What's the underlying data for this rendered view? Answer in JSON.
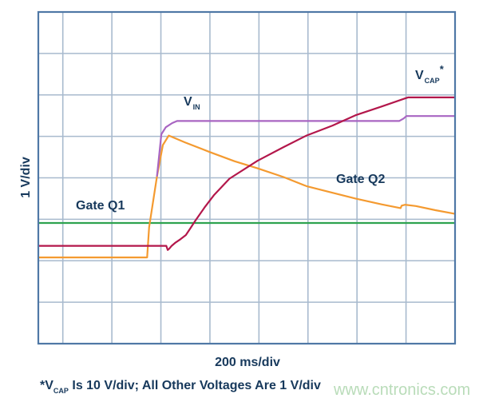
{
  "chart_data": {
    "type": "line",
    "xlabel": "200 ms/div",
    "ylabel": "1 V/div",
    "footnote": {
      "prefix": "*V",
      "sub": "CAP",
      "rest": " Is 10 V/div; All Other Voltages Are 1 V/div"
    },
    "watermark": "www.cntronics.com",
    "x_unit": "ms",
    "y_unit": "div",
    "xlim": [
      0,
      1700
    ],
    "ylim": [
      0,
      8
    ],
    "grid": true,
    "x_grid_step": 200,
    "x_grid_offset": 100,
    "y_grid_step": 1,
    "colors": {
      "frame": "#4f78a6",
      "grid": "#a8bace",
      "text": "#17395c",
      "watermark": "#b9dcb9"
    },
    "series": [
      {
        "name": "Gate Q1",
        "color": "#2ea34f",
        "x": [
          0,
          1700
        ],
        "y": [
          2.91,
          2.91
        ],
        "label": {
          "main": "Gate Q1",
          "sub": "",
          "suffix": ""
        }
      },
      {
        "name": "Gate Q2",
        "color": "#f49a30",
        "x": [
          0,
          444,
          452,
          484,
          508,
          532,
          600,
          700,
          800,
          894,
          1000,
          1094,
          1200,
          1294,
          1400,
          1478,
          1482,
          1496,
          1540,
          1620,
          1700
        ],
        "y": [
          2.08,
          2.08,
          2.81,
          4.03,
          4.79,
          5.02,
          4.85,
          4.62,
          4.4,
          4.23,
          4.02,
          3.8,
          3.64,
          3.5,
          3.36,
          3.27,
          3.33,
          3.35,
          3.32,
          3.22,
          3.13
        ],
        "label": {
          "main": "Gate Q2",
          "sub": "",
          "suffix": ""
        }
      },
      {
        "name": "VIN",
        "color": "#a865c2",
        "x": [
          0,
          470,
          484,
          502,
          520,
          546,
          566,
          600,
          1472,
          1490,
          1502,
          1700
        ],
        "y": [
          null,
          null,
          4.03,
          5.05,
          5.22,
          5.32,
          5.37,
          5.37,
          5.37,
          5.43,
          5.49,
          5.49
        ],
        "label": {
          "main": "V",
          "sub": "IN",
          "suffix": ""
        }
      },
      {
        "name": "VCAP",
        "color": "#b3174b",
        "x": [
          0,
          522,
          528,
          534,
          544,
          560,
          580,
          602,
          620,
          640,
          680,
          716,
          780,
          894,
          1000,
          1094,
          1200,
          1294,
          1400,
          1508,
          1700
        ],
        "y": [
          2.36,
          2.36,
          2.26,
          2.29,
          2.36,
          2.44,
          2.52,
          2.62,
          2.78,
          2.96,
          3.3,
          3.58,
          3.98,
          4.41,
          4.74,
          5.02,
          5.26,
          5.51,
          5.72,
          5.94,
          5.94
        ],
        "label": {
          "main": "V",
          "sub": "CAP",
          "suffix": "*"
        }
      }
    ]
  }
}
